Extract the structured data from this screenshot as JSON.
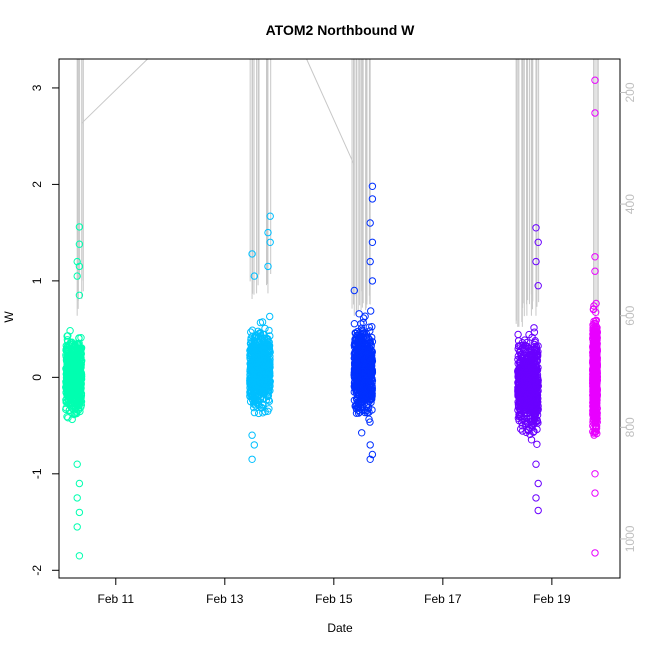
{
  "chart_data": {
    "type": "scatter",
    "title": "ATOM2 Northbound W",
    "xlabel": "Date",
    "ylabel": "W",
    "xlim": [
      "Feb 09 23:00",
      "Feb 20 06:00"
    ],
    "ylim": [
      -2.08,
      3.3
    ],
    "x_ticks": [
      {
        "label": "Feb 11",
        "value": "Feb 11"
      },
      {
        "label": "Feb 13",
        "value": "Feb 13"
      },
      {
        "label": "Feb 15",
        "value": "Feb 15"
      },
      {
        "label": "Feb 17",
        "value": "Feb 17"
      },
      {
        "label": "Feb 19",
        "value": "Feb 19"
      }
    ],
    "y_ticks": [
      -2,
      -1,
      0,
      1,
      2,
      3
    ],
    "secondary_axis": {
      "position": "right",
      "ticks": [
        200,
        400,
        600,
        800,
        1000
      ],
      "reversed": true,
      "ylim": [
        140,
        1070
      ],
      "color": "#bfbfbf"
    },
    "grid": false,
    "legend": "none",
    "series": [
      {
        "color": "#00ffb0",
        "x_range": [
          "Feb 10 02:00",
          "Feb 10 09:00"
        ],
        "core_range": [
          -0.55,
          0.55
        ],
        "outliers": [
          1.56,
          1.38,
          1.2,
          1.15,
          1.05,
          0.85,
          -0.9,
          -1.1,
          -1.25,
          -1.4,
          -1.55,
          -1.85
        ],
        "x_outliers": [
          "Feb 10 08:00",
          "Feb 10 08:00",
          "Feb 10 07:00",
          "Feb 10 08:00",
          "Feb 10 07:00",
          "Feb 10 08:00",
          "Feb 10 07:00",
          "Feb 10 08:00",
          "Feb 10 07:00",
          "Feb 10 08:00",
          "Feb 10 07:00",
          "Feb 10 08:00"
        ]
      },
      {
        "color": "#00bfff",
        "x_range": [
          "Feb 13 11:00",
          "Feb 13 20:00"
        ],
        "core_range": [
          -0.5,
          0.7
        ],
        "outliers": [
          1.67,
          1.5,
          1.4,
          1.28,
          1.15,
          1.05,
          -0.6,
          -0.7,
          -0.85
        ],
        "x_outliers": [
          "Feb 13 20:00",
          "Feb 13 19:00",
          "Feb 13 20:00",
          "Feb 13 12:00",
          "Feb 13 19:00",
          "Feb 13 13:00",
          "Feb 13 12:00",
          "Feb 13 13:00",
          "Feb 13 12:00"
        ]
      },
      {
        "color": "#0030ff",
        "x_range": [
          "Feb 15 09:00",
          "Feb 15 17:00"
        ],
        "core_range": [
          -0.6,
          0.75
        ],
        "outliers": [
          1.98,
          1.85,
          1.6,
          1.4,
          1.2,
          1.0,
          0.9,
          -0.7,
          -0.8,
          -0.85
        ],
        "x_outliers": [
          "Feb 15 17:00",
          "Feb 15 17:00",
          "Feb 15 16:00",
          "Feb 15 17:00",
          "Feb 15 16:00",
          "Feb 15 17:00",
          "Feb 15 09:00",
          "Feb 15 16:00",
          "Feb 15 17:00",
          "Feb 15 16:00"
        ]
      },
      {
        "color": "#6a00ff",
        "x_range": [
          "Feb 18 09:00",
          "Feb 18 18:00"
        ],
        "core_range": [
          -0.75,
          0.6
        ],
        "outliers": [
          1.55,
          1.4,
          1.2,
          0.95,
          -0.9,
          -1.1,
          -1.25,
          -1.38
        ],
        "x_outliers": [
          "Feb 18 17:00",
          "Feb 18 18:00",
          "Feb 18 17:00",
          "Feb 18 18:00",
          "Feb 18 17:00",
          "Feb 18 18:00",
          "Feb 18 17:00",
          "Feb 18 18:00"
        ]
      },
      {
        "color": "#e800ff",
        "x_range": [
          "Feb 19 18:00",
          "Feb 19 20:00"
        ],
        "core_range": [
          -0.8,
          0.9
        ],
        "outliers": [
          3.08,
          2.74,
          1.25,
          1.1,
          -1.0,
          -1.2,
          -1.82
        ],
        "x_outliers": [
          "Feb 19 19:00",
          "Feb 19 19:00",
          "Feb 19 19:00",
          "Feb 19 19:00",
          "Feb 19 19:00",
          "Feb 19 19:00",
          "Feb 19 19:00"
        ]
      }
    ],
    "secondary_lines": {
      "color": "#c8c8c8",
      "note_free": true,
      "segments": [
        {
          "x": [
            "Feb 10 07:00",
            "Feb 10 07:00"
          ],
          "y": [
            140,
            600
          ]
        },
        {
          "x": [
            "Feb 10 09:00",
            "Feb 10 09:00"
          ],
          "y": [
            140,
            570
          ]
        },
        {
          "x": [
            "Feb 10 09:00",
            "Feb 11 14:00"
          ],
          "y": [
            255,
            140
          ]
        },
        {
          "x": [
            "Feb 13 12:00",
            "Feb 13 12:00"
          ],
          "y": [
            140,
            570
          ]
        },
        {
          "x": [
            "Feb 13 14:00",
            "Feb 13 14:00"
          ],
          "y": [
            140,
            560
          ]
        },
        {
          "x": [
            "Feb 13 19:00",
            "Feb 13 19:00"
          ],
          "y": [
            140,
            560
          ]
        },
        {
          "x": [
            "Feb 14 12:00",
            "Feb 15 09:00"
          ],
          "y": [
            140,
            330
          ]
        },
        {
          "x": [
            "Feb 15 09:00",
            "Feb 15 09:00"
          ],
          "y": [
            140,
            600
          ]
        },
        {
          "x": [
            "Feb 15 10:00",
            "Feb 15 10:00"
          ],
          "y": [
            140,
            600
          ]
        },
        {
          "x": [
            "Feb 15 12:00",
            "Feb 15 12:00"
          ],
          "y": [
            140,
            590
          ]
        },
        {
          "x": [
            "Feb 15 14:00",
            "Feb 15 14:00"
          ],
          "y": [
            140,
            590
          ]
        },
        {
          "x": [
            "Feb 15 16:00",
            "Feb 15 16:00"
          ],
          "y": [
            140,
            580
          ]
        },
        {
          "x": [
            "Feb 18 09:00",
            "Feb 18 09:00"
          ],
          "y": [
            140,
            620
          ]
        },
        {
          "x": [
            "Feb 18 11:00",
            "Feb 18 11:00"
          ],
          "y": [
            140,
            620
          ]
        },
        {
          "x": [
            "Feb 18 13:00",
            "Feb 18 13:00"
          ],
          "y": [
            140,
            600
          ]
        },
        {
          "x": [
            "Feb 18 15:00",
            "Feb 18 15:00"
          ],
          "y": [
            140,
            600
          ]
        },
        {
          "x": [
            "Feb 18 17:00",
            "Feb 18 17:00"
          ],
          "y": [
            140,
            600
          ]
        },
        {
          "x": [
            "Feb 19 19:00",
            "Feb 19 19:00"
          ],
          "y": [
            140,
            620
          ]
        }
      ]
    }
  }
}
